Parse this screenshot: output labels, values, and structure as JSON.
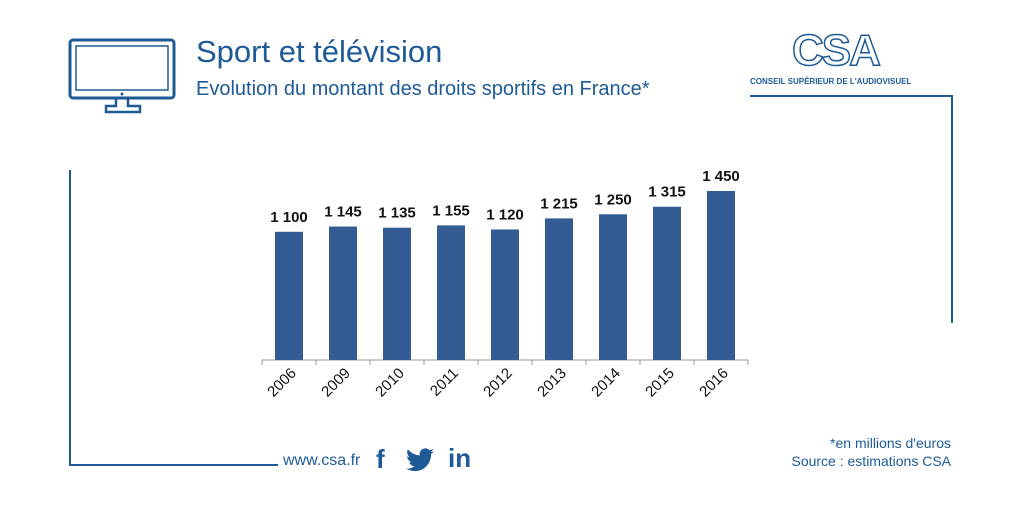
{
  "header": {
    "title": "Sport et télévision",
    "subtitle": "Evolution du montant des droits sportifs en France*"
  },
  "logo": {
    "text": "CSA",
    "subtitle": "CONSEIL SUPÉRIEUR DE L'AUDIOVISUEL"
  },
  "footer": {
    "website": "www.csa.fr",
    "social_icons": [
      "facebook-icon",
      "twitter-icon",
      "linkedin-icon"
    ],
    "note": "*en millions d'euros",
    "source": "Source : estimations CSA"
  },
  "colors": {
    "brand": "#1e5a96",
    "bar": "#335c95"
  },
  "chart_data": {
    "type": "bar",
    "title": "Evolution du montant des droits sportifs en France*",
    "categories": [
      "2006",
      "2009",
      "2010",
      "2011",
      "2012",
      "2013",
      "2014",
      "2015",
      "2016"
    ],
    "values": [
      1100,
      1145,
      1135,
      1155,
      1120,
      1215,
      1250,
      1315,
      1450
    ],
    "labels": [
      "1 100",
      "1 145",
      "1 135",
      "1 155",
      "1 120",
      "1 215",
      "1 250",
      "1 315",
      "1 450"
    ],
    "xlabel": "",
    "ylabel": "",
    "ylim": [
      0,
      1450
    ],
    "grid": false,
    "unit": "millions d'euros"
  }
}
